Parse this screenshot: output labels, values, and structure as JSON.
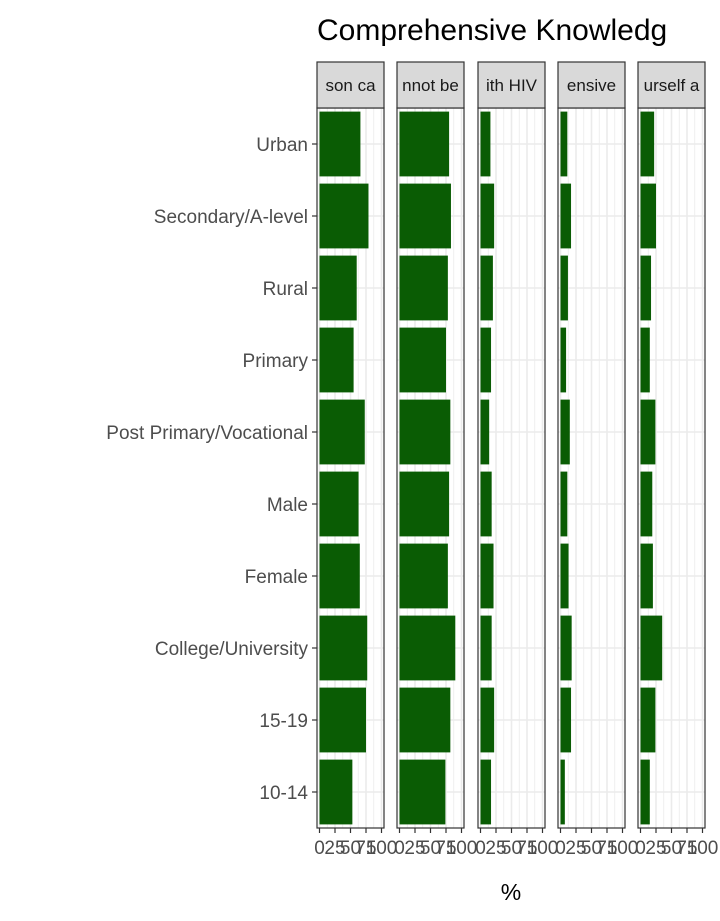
{
  "chart_data": {
    "type": "bar",
    "orientation": "horizontal",
    "title": "Comprehensive Knowledg",
    "xlabel": "%",
    "ylabel": "",
    "xlim": [
      0,
      100
    ],
    "x_ticks": [
      "0",
      "25",
      "50",
      "75",
      "100"
    ],
    "grid": true,
    "legend": "none",
    "bar_color": "#0a5c04",
    "categories": [
      "Urban",
      "Secondary/A-level",
      "Rural",
      "Primary",
      "Post Primary/Vocational",
      "Male",
      "Female",
      "College/University",
      "15-19",
      "10-14"
    ],
    "panels": [
      {
        "label": "son ca",
        "values": [
          66,
          79,
          60,
          55,
          73,
          63,
          65,
          77,
          75,
          53
        ]
      },
      {
        "label": "nnot be",
        "values": [
          80,
          83,
          78,
          75,
          82,
          80,
          78,
          90,
          82,
          74
        ]
      },
      {
        "label": "ith HIV",
        "values": [
          16,
          22,
          20,
          17,
          14,
          18,
          21,
          18,
          22,
          17
        ]
      },
      {
        "label": "ensive",
        "values": [
          11,
          17,
          12,
          9,
          15,
          11,
          13,
          18,
          17,
          7
        ]
      },
      {
        "label": "urself a",
        "values": [
          22,
          25,
          17,
          15,
          24,
          19,
          20,
          35,
          24,
          15
        ]
      }
    ]
  }
}
